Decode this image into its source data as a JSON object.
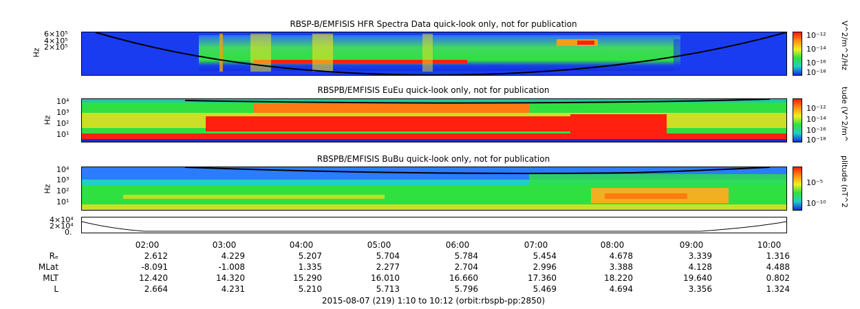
{
  "panels": [
    {
      "title": "RBSP-B/EMFISIS  HFR Spectra Data quick-look only, not for publication",
      "ylabel": "Hz",
      "yticks": [
        "6×10⁵",
        "4×10⁵",
        "2×10⁵"
      ],
      "colorbar_label": "V^2/m^2/Hz",
      "colorbar_ticks": [
        "10⁻¹²",
        "10⁻¹⁴",
        "10⁻¹⁶",
        "10⁻¹⁸"
      ]
    },
    {
      "title": "RBSPB/EMFISIS  EuEu quick-look only, not for publication",
      "ylabel": "Hz",
      "yticks": [
        "10⁴",
        "10³",
        "10²",
        "10¹"
      ],
      "colorbar_label": "tude (V^2/m^",
      "colorbar_ticks": [
        "10⁻¹²",
        "10⁻¹⁴",
        "10⁻¹⁶",
        "10⁻¹⁸"
      ]
    },
    {
      "title": "RBSPB/EMFISIS  BuBu quick-look only, not for publication",
      "ylabel": "Hz",
      "yticks": [
        "10⁴",
        "10³",
        "10²",
        "10¹"
      ],
      "colorbar_label": "plitude (nT^2",
      "colorbar_ticks": [
        "10⁻⁵",
        "10⁻¹⁰"
      ]
    }
  ],
  "small_panel": {
    "yticks": [
      "4×10⁴",
      "2×10⁴",
      "0."
    ]
  },
  "times": [
    "02:00",
    "03:00",
    "04:00",
    "05:00",
    "06:00",
    "07:00",
    "08:00",
    "09:00",
    "10:00"
  ],
  "ephemeris": [
    {
      "label": "Rₑ",
      "values": [
        "2.612",
        "4.229",
        "5.207",
        "5.704",
        "5.784",
        "5.454",
        "4.678",
        "3.339",
        "1.316"
      ]
    },
    {
      "label": "MLat",
      "values": [
        "-8.091",
        "-1.008",
        "1.335",
        "2.277",
        "2.704",
        "2.996",
        "3.388",
        "4.128",
        "4.488"
      ]
    },
    {
      "label": "MLT",
      "values": [
        "12.420",
        "14.320",
        "15.290",
        "16.010",
        "16.660",
        "17.360",
        "18.220",
        "19.640",
        "0.802"
      ]
    },
    {
      "label": "L",
      "values": [
        "2.664",
        "4.231",
        "5.210",
        "5.713",
        "5.796",
        "5.469",
        "4.694",
        "3.356",
        "1.324"
      ]
    }
  ],
  "footer": "2015-08-07 (219) 1:10 to 10:12 (orbit:rbspb-pp:2850)",
  "chart_data": [
    {
      "type": "heatmap",
      "title": "RBSP-B/EMFISIS  HFR Spectra Data quick-look only, not for publication",
      "ylabel": "Hz",
      "x": [
        "02:00",
        "03:00",
        "04:00",
        "05:00",
        "06:00",
        "07:00",
        "08:00",
        "09:00",
        "10:00"
      ],
      "colorbar": "V^2/m^2/Hz",
      "color_range": [
        "1e-18",
        "1e-12"
      ]
    },
    {
      "type": "heatmap",
      "title": "RBSPB/EMFISIS  EuEu quick-look only, not for publication",
      "ylabel": "Hz",
      "x": [
        "02:00",
        "03:00",
        "04:00",
        "05:00",
        "06:00",
        "07:00",
        "08:00",
        "09:00",
        "10:00"
      ],
      "color_range": [
        "1e-18",
        "1e-12"
      ]
    },
    {
      "type": "heatmap",
      "title": "RBSPB/EMFISIS  BuBu quick-look only, not for publication",
      "ylabel": "Hz",
      "x": [
        "02:00",
        "03:00",
        "04:00",
        "05:00",
        "06:00",
        "07:00",
        "08:00",
        "09:00",
        "10:00"
      ],
      "color_range": [
        "1e-10",
        "1e-5"
      ]
    }
  ],
  "colors": {
    "deep_blue": "#1030e0",
    "blue": "#2c7cff",
    "cyan": "#20d0c0",
    "green": "#30e040",
    "yellow": "#f0f020",
    "orange": "#ff9010",
    "red": "#ff1a0a"
  }
}
